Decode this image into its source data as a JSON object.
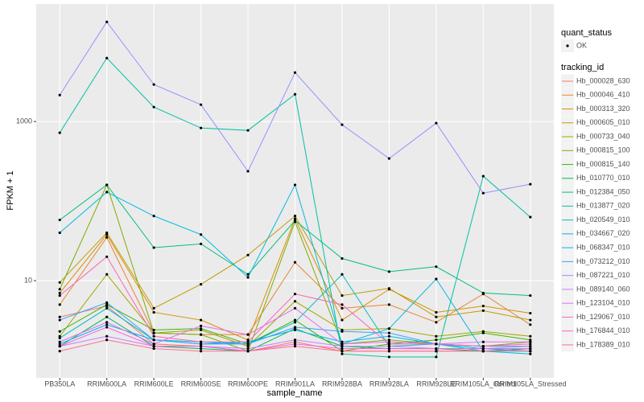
{
  "chart_data": {
    "type": "line",
    "x_label": "sample_name",
    "y_label": "FPKM + 1",
    "log_y": true,
    "grid": true,
    "categories": [
      "PB350LA",
      "RRIM600LA",
      "RRIM600LE",
      "RRIM600SE",
      "RRIM600PE",
      "RRIM901LA",
      "RRIM928BA",
      "RRIM928LA",
      "RRIM928LE",
      "RRIM105LA_Control",
      "RRIM105LA_Stressed"
    ],
    "ylim": [
      0.6,
      30000
    ],
    "yticks": [
      10,
      1000
    ],
    "point_legend_title": "quant_status",
    "point_legend_entries": [
      "OK"
    ],
    "point_color": "#000000",
    "legend_title": "tracking_id",
    "series": [
      {
        "name": "Hb_000028_630",
        "color": "#F8766D",
        "values": [
          3.5,
          4.8,
          1.6,
          1.5,
          1.3,
          1.7,
          1.3,
          1.3,
          1.3,
          1.3,
          1.4
        ]
      },
      {
        "name": "Hb_000046_410",
        "color": "#EA8331",
        "values": [
          5,
          35,
          2.2,
          2.1,
          2.1,
          17,
          4.5,
          5,
          3,
          6.8,
          2.8
        ]
      },
      {
        "name": "Hb_000313_320",
        "color": "#D89000",
        "values": [
          7,
          38,
          4,
          3.2,
          1.8,
          60,
          3.2,
          7.8,
          4,
          4.8,
          3.9
        ]
      },
      {
        "name": "Hb_000605_010",
        "color": "#C09B00",
        "values": [
          9.5,
          40,
          4.5,
          9,
          21,
          65,
          6.5,
          8,
          3.5,
          4.2,
          3.2
        ]
      },
      {
        "name": "Hb_000733_040",
        "color": "#A3A500",
        "values": [
          2,
          12,
          2.2,
          2.4,
          1.5,
          5.5,
          2.4,
          2.5,
          2,
          2.3,
          2
        ]
      },
      {
        "name": "Hb_000815_100",
        "color": "#7CAE00",
        "values": [
          7.8,
          160,
          2.2,
          2.1,
          1.3,
          55,
          1.6,
          1.8,
          1.6,
          1.5,
          1.7
        ]
      },
      {
        "name": "Hb_000815_140",
        "color": "#39B600",
        "values": [
          2.3,
          5,
          2.4,
          2.5,
          1.6,
          3.2,
          1.3,
          1.6,
          1.8,
          2.2,
          1.8
        ]
      },
      {
        "name": "Hb_010770_010",
        "color": "#00BB4E",
        "values": [
          1.5,
          3.5,
          1.5,
          1.4,
          1.3,
          2.5,
          1.5,
          1.4,
          1.4,
          1.3,
          1.4
        ]
      },
      {
        "name": "Hb_012384_050",
        "color": "#00BF7D",
        "values": [
          58,
          160,
          26,
          29,
          12,
          57,
          19,
          13,
          15,
          7,
          6.5
        ]
      },
      {
        "name": "Hb_013877_020",
        "color": "#00C1A3",
        "values": [
          723,
          6280,
          1520,
          830,
          774,
          2200,
          1.2,
          1.1,
          1.1,
          206,
          63
        ]
      },
      {
        "name": "Hb_020549_010",
        "color": "#00BFC4",
        "values": [
          1.9,
          4.5,
          1.8,
          1.7,
          1.6,
          3,
          12,
          1.5,
          1.6,
          1.3,
          1.3
        ]
      },
      {
        "name": "Hb_034667_020",
        "color": "#00BAE0",
        "values": [
          40,
          130,
          65,
          38,
          11,
          160,
          1.6,
          2.5,
          10.5,
          1.3,
          1.2
        ]
      },
      {
        "name": "Hb_068347_010",
        "color": "#00B0F6",
        "values": [
          1.6,
          2.8,
          1.8,
          1.6,
          1.7,
          2.4,
          1.7,
          2,
          1.6,
          1.4,
          1.3
        ]
      },
      {
        "name": "Hb_073212_010",
        "color": "#35A2FF",
        "values": [
          3.2,
          5.3,
          1.8,
          1.6,
          1.6,
          2.6,
          2.3,
          2.2,
          1.6,
          1.5,
          1.5
        ]
      },
      {
        "name": "Hb_087221_010",
        "color": "#9590FF",
        "values": [
          2150,
          17900,
          2920,
          1630,
          237,
          4130,
          912,
          343,
          955,
          126,
          163
        ]
      },
      {
        "name": "Hb_089140_060",
        "color": "#C77CFF",
        "values": [
          1.5,
          2,
          1.5,
          1.5,
          1.4,
          1.8,
          1.5,
          1.5,
          1.4,
          1.4,
          1.5
        ]
      },
      {
        "name": "Hb_123104_010",
        "color": "#E76BF3",
        "values": [
          1.7,
          3,
          1.6,
          2.7,
          2.1,
          4.5,
          1.6,
          1.7,
          1.6,
          1.7,
          1.7
        ]
      },
      {
        "name": "Hb_129067_010",
        "color": "#FA62DB",
        "values": [
          1.5,
          2.6,
          1.5,
          1.5,
          1.3,
          1.6,
          1.4,
          1.4,
          1.4,
          1.4,
          1.4
        ]
      },
      {
        "name": "Hb_176844_010",
        "color": "#FF62BC",
        "values": [
          6.5,
          20,
          2,
          1.7,
          1.7,
          6.8,
          5,
          1.6,
          1.6,
          1.5,
          1.6
        ]
      },
      {
        "name": "Hb_178389_010",
        "color": "#FF6C91",
        "values": [
          1.3,
          1.8,
          1.4,
          1.3,
          1.3,
          1.5,
          1.3,
          1.3,
          1.3,
          1.3,
          1.3
        ]
      }
    ]
  }
}
